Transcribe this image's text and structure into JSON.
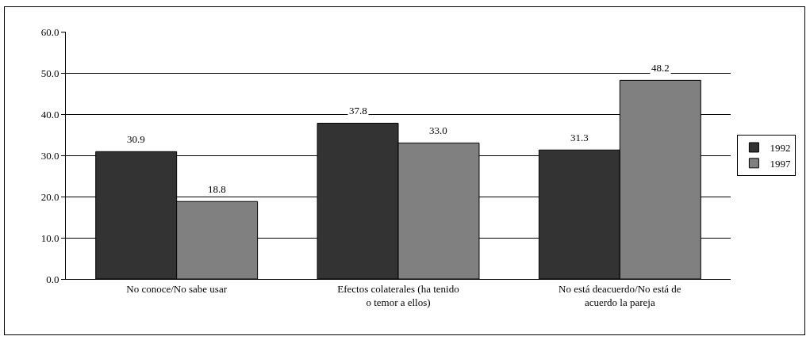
{
  "chart_data": {
    "type": "bar",
    "categories": [
      "No conoce/No sabe usar",
      "Efectos colaterales (ha tenido o temor a ellos)",
      "No está deacuerdo/No está de acuerdo la pareja"
    ],
    "series": [
      {
        "name": "1992",
        "color": "#333333",
        "values": [
          30.9,
          37.8,
          31.3
        ],
        "value_labels": [
          "30.9",
          "37.8",
          "31.3"
        ]
      },
      {
        "name": "1997",
        "color": "#808080",
        "values": [
          18.8,
          33.0,
          48.2
        ],
        "value_labels": [
          "18.8",
          "33.0",
          "48.2"
        ]
      }
    ],
    "ylim": [
      0,
      60
    ],
    "yticks": [
      {
        "value": 0,
        "label": "0.0"
      },
      {
        "value": 10,
        "label": "10.0"
      },
      {
        "value": 20,
        "label": "20.0"
      },
      {
        "value": 30,
        "label": "30.0"
      },
      {
        "value": 40,
        "label": "40.0"
      },
      {
        "value": 50,
        "label": "50.0"
      },
      {
        "value": 60,
        "label": "60.0"
      }
    ],
    "grid": "y",
    "legend": "right"
  }
}
